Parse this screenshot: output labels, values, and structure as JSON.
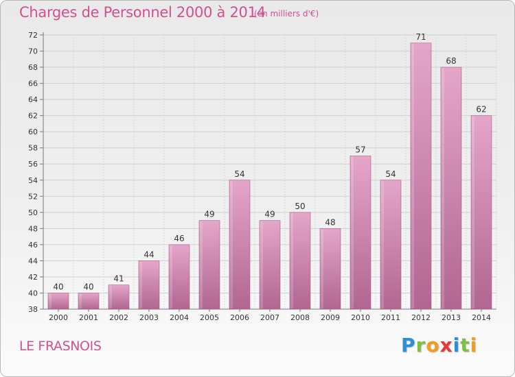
{
  "title": "Charges de Personnel 2000 à 2014",
  "subtitle": "(en milliers d'€)",
  "place": "LE FRASNOIS",
  "logo": {
    "letters": [
      "P",
      "r",
      "o",
      "x",
      "i",
      "t",
      "i"
    ],
    "colors": [
      "#2a8fd8",
      "#7cc242",
      "#f39c1f",
      "#e03a3a",
      "#2a8fd8",
      "#7cc242",
      "#f39c1f"
    ]
  },
  "chart_data": {
    "type": "bar",
    "title": "Charges de Personnel 2000 à 2014",
    "subtitle": "(en milliers d'€)",
    "xlabel": "",
    "ylabel": "",
    "categories": [
      "2000",
      "2001",
      "2002",
      "2003",
      "2004",
      "2005",
      "2006",
      "2007",
      "2008",
      "2009",
      "2010",
      "2011",
      "2012",
      "2013",
      "2014"
    ],
    "values": [
      40,
      40,
      41,
      44,
      46,
      49,
      54,
      49,
      50,
      48,
      57,
      54,
      71,
      68,
      62
    ],
    "ylim": [
      38,
      72
    ],
    "yticks": [
      38,
      40,
      42,
      44,
      46,
      48,
      50,
      52,
      54,
      56,
      58,
      60,
      62,
      64,
      66,
      68,
      70,
      72
    ],
    "grid": true,
    "bar_color": "#c9729f",
    "data_labels": true
  }
}
